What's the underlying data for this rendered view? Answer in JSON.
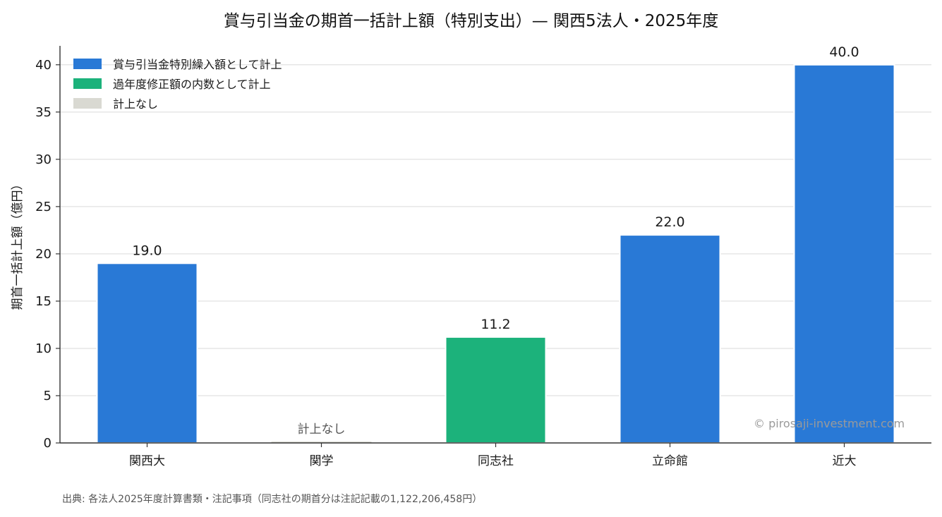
{
  "chart_data": {
    "type": "bar",
    "title": "賞与引当金の期首一括計上額（特別支出）— 関西5法人・2025年度",
    "ylabel": "期首一括計上額（億円）",
    "xlabel": "",
    "ylim": [
      0,
      42
    ],
    "yticks": [
      0,
      5,
      10,
      15,
      20,
      25,
      30,
      35,
      40
    ],
    "grid": true,
    "legend_position": "top-left",
    "categories": [
      "関西大",
      "関学",
      "同志社",
      "立命館",
      "近大"
    ],
    "values": [
      19.0,
      0,
      11.2,
      22.0,
      40.0
    ],
    "value_labels": [
      "19.0",
      "計上なし",
      "11.2",
      "22.0",
      "40.0"
    ],
    "bar_series": [
      "special",
      "none",
      "prior",
      "special",
      "special"
    ],
    "legend": [
      {
        "key": "special",
        "label": "賞与引当金特別繰入額として計上",
        "color": "#2979d6"
      },
      {
        "key": "prior",
        "label": "過年度修正額の内数として計上",
        "color": "#1cb27b"
      },
      {
        "key": "none",
        "label": "計上なし",
        "color": "#d9d9d2"
      }
    ]
  },
  "watermark": "© pirosaji-investment.com",
  "footnote": "出典: 各法人2025年度計算書類・注記事項（同志社の期首分は注記記載の1,122,206,458円）"
}
